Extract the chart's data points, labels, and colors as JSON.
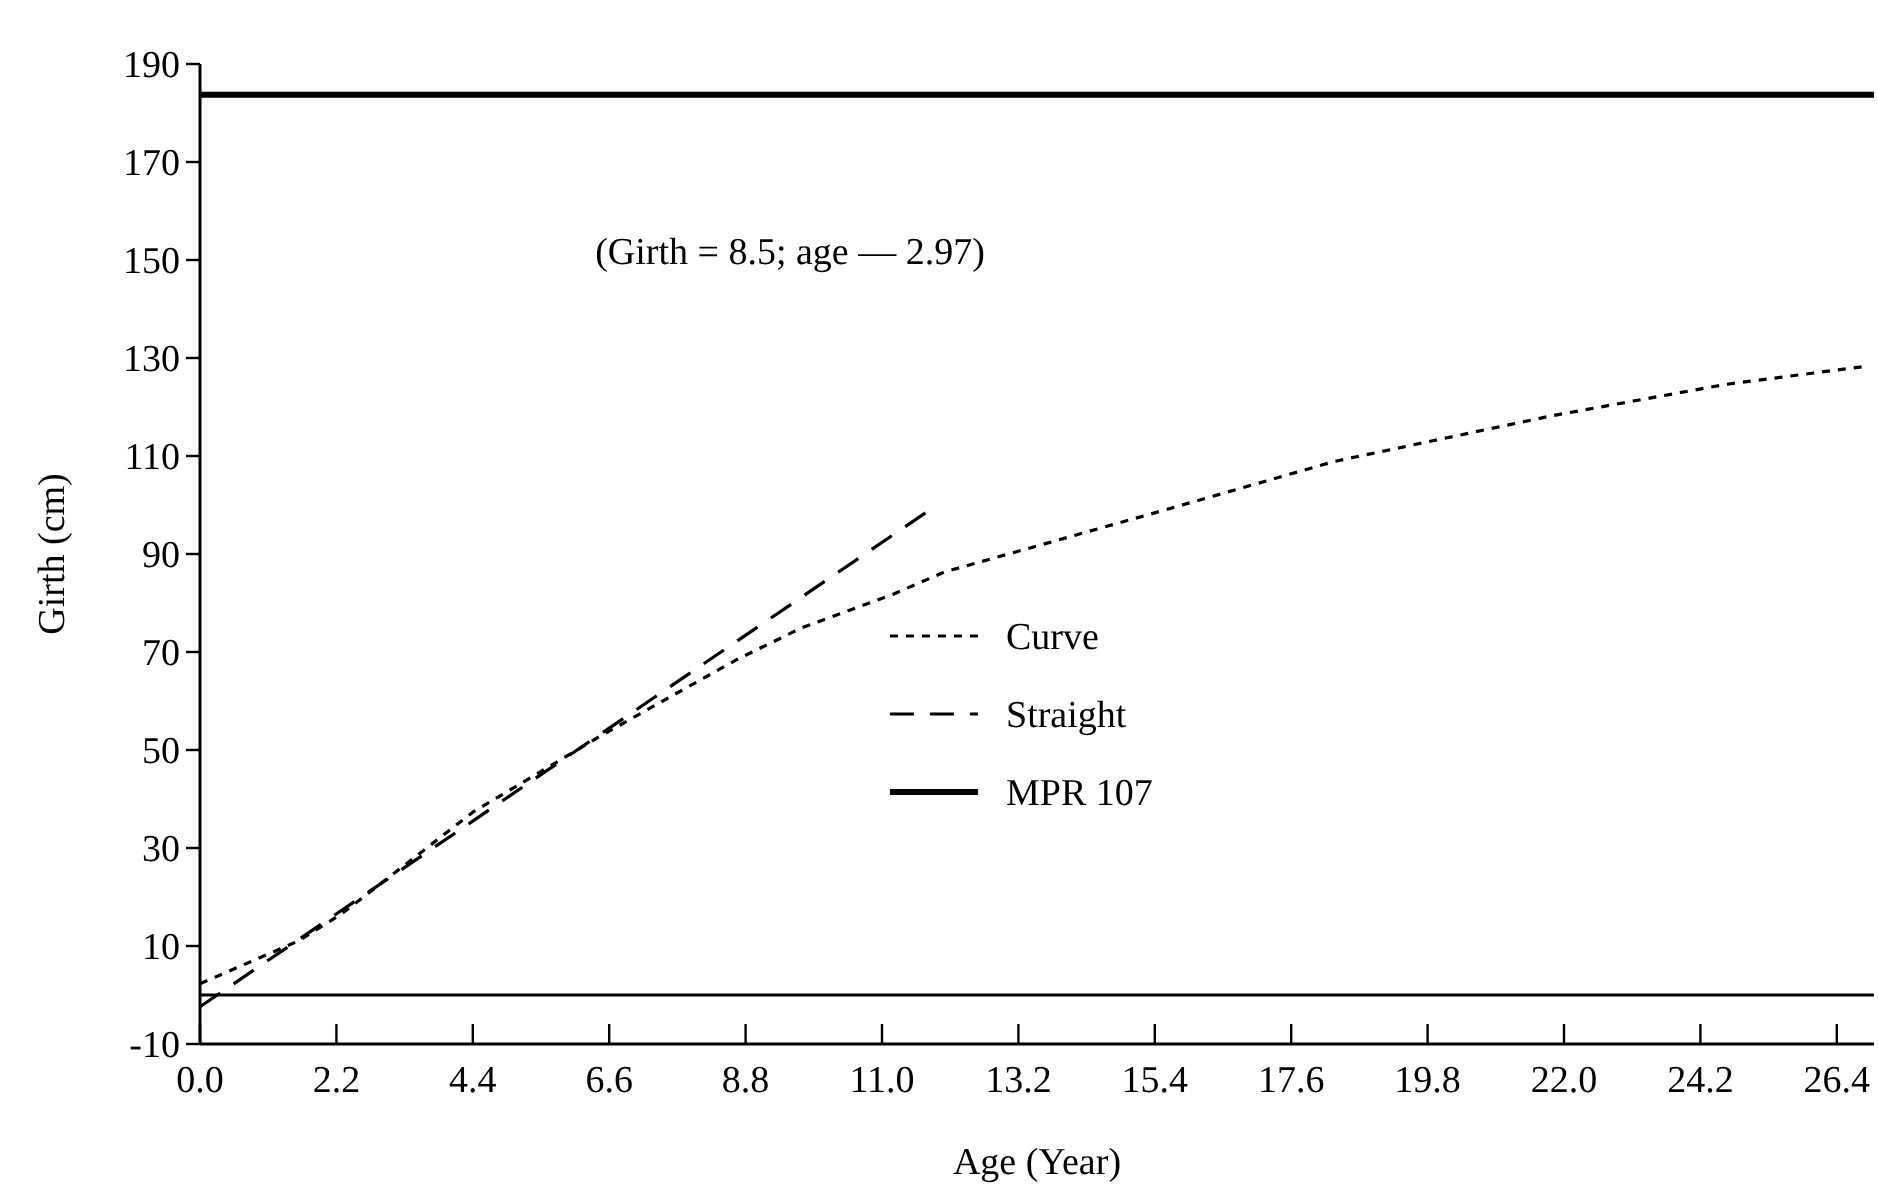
{
  "chart_data": {
    "type": "line",
    "xlabel": "Age (Year)",
    "ylabel": "Girth (cm)",
    "xlim": [
      0,
      27
    ],
    "ylim": [
      -10,
      190
    ],
    "xticks": [
      {
        "value": 0,
        "label": "0.0"
      },
      {
        "value": 2.2,
        "label": "2.2"
      },
      {
        "value": 4.4,
        "label": "4.4"
      },
      {
        "value": 6.6,
        "label": "6.6"
      },
      {
        "value": 8.8,
        "label": "8.8"
      },
      {
        "value": 11,
        "label": "11.0"
      },
      {
        "value": 13.2,
        "label": "13.2"
      },
      {
        "value": 15.4,
        "label": "15.4"
      },
      {
        "value": 17.6,
        "label": "17.6"
      },
      {
        "value": 19.8,
        "label": "19.8"
      },
      {
        "value": 22,
        "label": "22.0"
      },
      {
        "value": 24.2,
        "label": "24.2"
      },
      {
        "value": 26.4,
        "label": "26.4"
      }
    ],
    "yticks": [
      -10,
      10,
      30,
      50,
      70,
      90,
      110,
      130,
      150,
      170,
      190
    ],
    "series": [
      {
        "name": "Curve",
        "color": "#000000",
        "line_style": "dotted",
        "x": [
          0,
          1.6,
          2.3,
          4.4,
          6.45,
          8.65,
          9.7,
          11.2,
          12,
          15.4,
          18.3,
          21.8,
          24.6,
          26.8
        ],
        "values": [
          2.3,
          11.1,
          16.7,
          37.3,
          52.8,
          68.4,
          74.9,
          81.9,
          86.3,
          98.4,
          108.9,
          118.2,
          124.6,
          128.2
        ]
      },
      {
        "name": "Straight",
        "color": "#000000",
        "line_style": "dashed",
        "x": [
          0,
          11.7
        ],
        "values": [
          -2.4,
          98.4
        ]
      },
      {
        "name": "MPR 107",
        "color": "#000000",
        "line_style": "solid",
        "x": [
          0,
          27
        ],
        "values": [
          183.7,
          183.7
        ]
      }
    ],
    "ref_lines": [
      {
        "axis": "y",
        "value": 0,
        "color": "#000000"
      }
    ],
    "annotations": [
      "(Girth = 8.5; age — 2.97)"
    ],
    "legend": "center",
    "grid": false
  }
}
